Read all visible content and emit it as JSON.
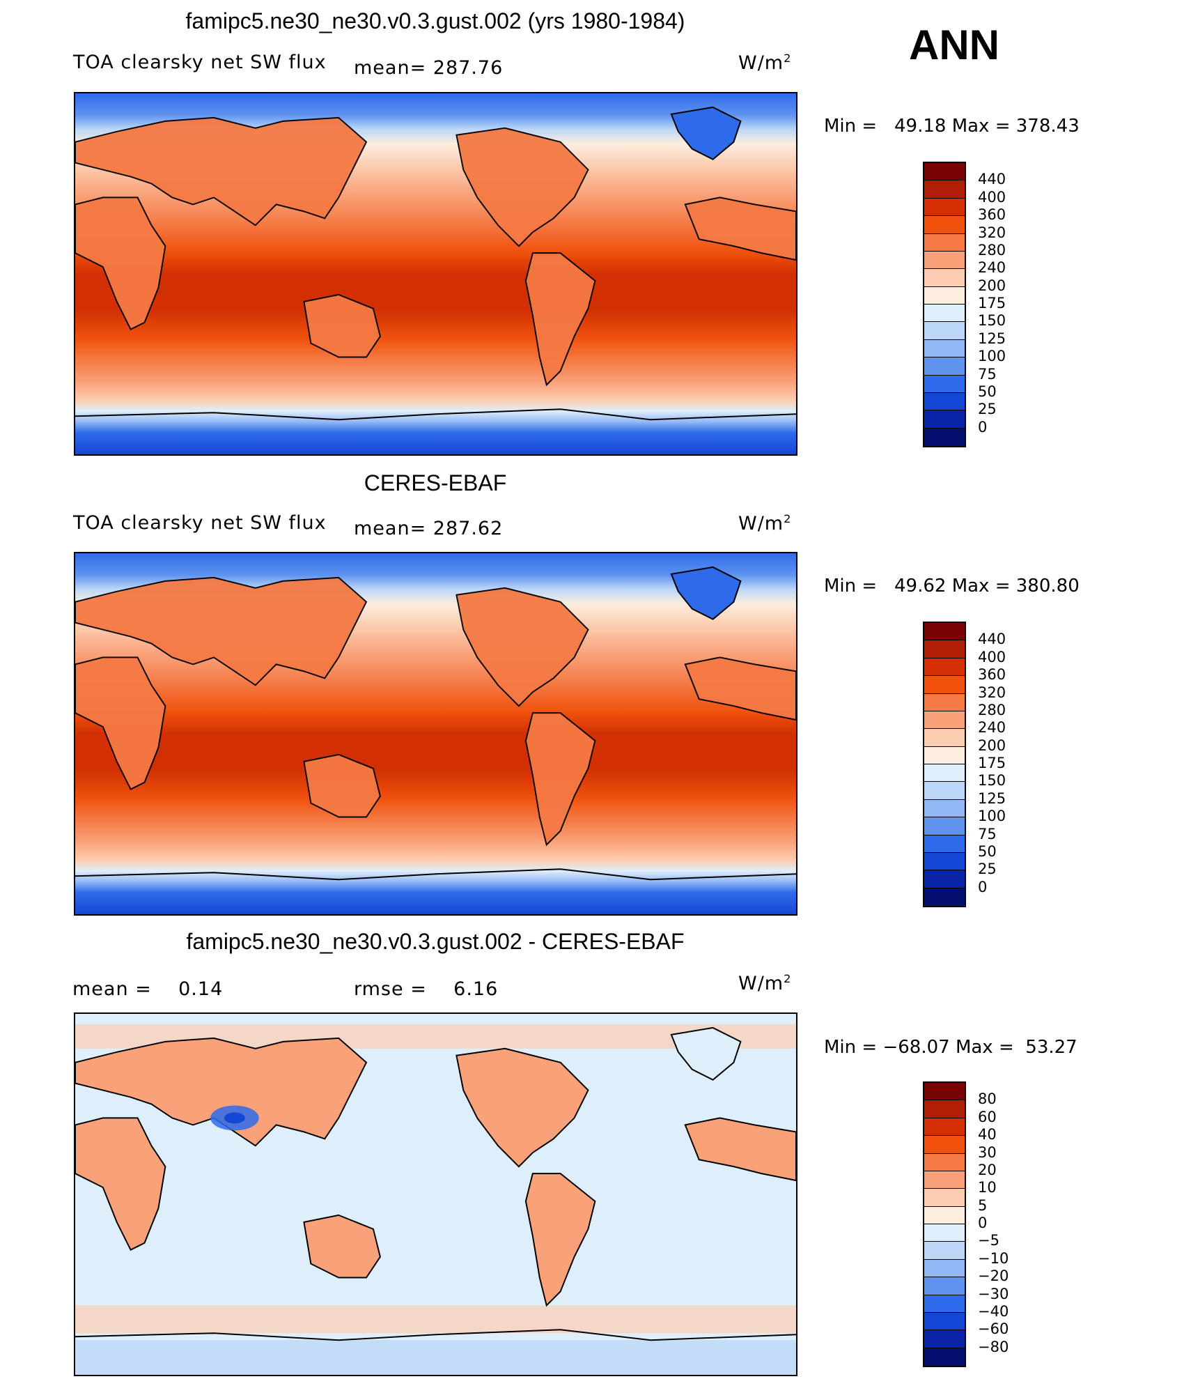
{
  "season": "ANN",
  "units_base": "W/m",
  "units_exp": "2",
  "panels": [
    {
      "id": "model",
      "title": "famipc5.ne30_ne30.v0.3.gust.002 (yrs 1980-1984)",
      "left_label": "TOA clearsky net SW flux",
      "stat1_label": "mean=",
      "stat1_value": "287.76",
      "min_label": "Min =",
      "min_value": "49.18",
      "max_label": "Max =",
      "max_value": "378.43"
    },
    {
      "id": "obs",
      "title": "CERES-EBAF",
      "left_label": "TOA clearsky net SW flux",
      "stat1_label": "mean=",
      "stat1_value": "287.62",
      "min_label": "Min =",
      "min_value": "49.62",
      "max_label": "Max =",
      "max_value": "380.80"
    },
    {
      "id": "diff",
      "title": "famipc5.ne30_ne30.v0.3.gust.002 - CERES-EBAF",
      "left_label": "mean =",
      "left_value": "0.14",
      "stat1_label": "rmse =",
      "stat1_value": "6.16",
      "min_label": "Min =",
      "min_value": "−68.07",
      "max_label": "Max =",
      "max_value": "53.27"
    }
  ],
  "colorbars": {
    "abs": {
      "levels": [
        "440",
        "400",
        "360",
        "320",
        "280",
        "240",
        "200",
        "175",
        "150",
        "125",
        "100",
        "75",
        "50",
        "25",
        "0"
      ],
      "colors": [
        "#7a0403",
        "#b01e05",
        "#d23002",
        "#f0520e",
        "#f57a45",
        "#f9a27a",
        "#fccdb0",
        "#fdeee0",
        "#dfeefb",
        "#bcd7f8",
        "#92b8f5",
        "#5f93ee",
        "#2e6bea",
        "#1547d6",
        "#0a24a8",
        "#020f6c"
      ]
    },
    "diff": {
      "levels": [
        "80",
        "60",
        "40",
        "30",
        "20",
        "10",
        "5",
        "0",
        "−5",
        "−10",
        "−20",
        "−30",
        "−40",
        "−60",
        "−80"
      ],
      "colors": [
        "#7a0403",
        "#b01e05",
        "#d23002",
        "#f0520e",
        "#f57a45",
        "#f9a27a",
        "#fccdb0",
        "#fdeee0",
        "#dfeefb",
        "#bcd7f8",
        "#92b8f5",
        "#5f93ee",
        "#2e6bea",
        "#1547d6",
        "#0a24a8",
        "#020f6c"
      ]
    }
  }
}
